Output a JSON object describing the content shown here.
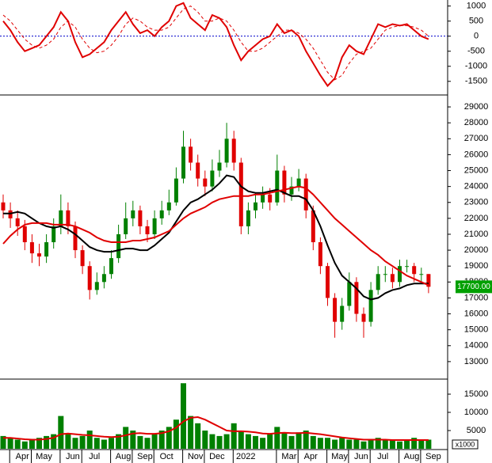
{
  "chart_data": [
    {
      "type": "line",
      "ylim": [
        -1900,
        1200
      ],
      "yticks": [
        1000,
        500,
        0,
        -500,
        -1000,
        -1500
      ],
      "zero_line_color": "#0000cc",
      "series": [
        {
          "color": "#e00000",
          "dashed": false,
          "values": [
            500,
            200,
            -200,
            -500,
            -400,
            -300,
            0,
            300,
            800,
            500,
            -200,
            -700,
            -600,
            -400,
            -200,
            200,
            500,
            800,
            400,
            100,
            200,
            0,
            300,
            500,
            1000,
            1100,
            600,
            400,
            200,
            700,
            600,
            300,
            -300,
            -800,
            -500,
            -300,
            -100,
            0,
            400,
            100,
            200,
            0,
            -500,
            -900,
            -1300,
            -1650,
            -1400,
            -700,
            -300,
            -500,
            -600,
            -100,
            400,
            300,
            400,
            350,
            400,
            200,
            0,
            -100
          ]
        },
        {
          "color": "#e00000",
          "dashed": true,
          "values": [
            700,
            500,
            200,
            -100,
            -300,
            -400,
            -300,
            -100,
            300,
            500,
            300,
            -100,
            -400,
            -550,
            -500,
            -300,
            0,
            400,
            600,
            500,
            300,
            200,
            200,
            300,
            600,
            900,
            1000,
            800,
            500,
            500,
            600,
            500,
            200,
            -200,
            -500,
            -500,
            -400,
            -200,
            0,
            200,
            200,
            100,
            -100,
            -400,
            -800,
            -1200,
            -1450,
            -1300,
            -900,
            -600,
            -500,
            -400,
            -100,
            200,
            300,
            350,
            350,
            300,
            200,
            0
          ]
        }
      ]
    },
    {
      "type": "candlestick",
      "ylim": [
        11950,
        29650
      ],
      "yticks": [
        29000,
        28000,
        27000,
        26000,
        25000,
        24000,
        23000,
        22000,
        21000,
        20000,
        19000,
        18000,
        17000,
        16000,
        15000,
        14000,
        13000
      ],
      "up_color": "#008000",
      "down_color": "#e00000",
      "open": [
        23000,
        22500,
        22000,
        21500,
        20500,
        19800,
        19600,
        20500,
        21500,
        22500,
        21500,
        20000,
        19000,
        17500,
        18000,
        18500,
        19500,
        21000,
        22000,
        22500,
        21500,
        21000,
        22000,
        22500,
        23000,
        24500,
        26500,
        25500,
        24500,
        24000,
        25000,
        25500,
        27000,
        25500,
        21500,
        22500,
        23000,
        23500,
        23000,
        25000,
        23500,
        24000,
        24500,
        22500,
        20500,
        19000,
        17000,
        15500,
        16500,
        18000,
        16000,
        15500,
        17500,
        18500,
        18500,
        18000,
        19000,
        19000,
        18500,
        18500
      ],
      "high": [
        23500,
        23000,
        22500,
        21900,
        21000,
        20400,
        21000,
        22000,
        23500,
        23000,
        21800,
        20300,
        19300,
        18600,
        19000,
        20000,
        21600,
        23000,
        23100,
        22800,
        21900,
        22500,
        23100,
        23800,
        25200,
        27500,
        27000,
        26000,
        25000,
        25700,
        26300,
        28000,
        27500,
        25800,
        23000,
        23600,
        24000,
        23900,
        26000,
        25300,
        24600,
        25100,
        24800,
        22800,
        20800,
        19200,
        17300,
        17000,
        18600,
        18300,
        16400,
        18000,
        19000,
        19000,
        18900,
        19400,
        19400,
        19200,
        18900,
        18500
      ],
      "low": [
        22000,
        21400,
        20900,
        20000,
        19200,
        19000,
        19200,
        20100,
        21000,
        21000,
        19500,
        18500,
        16900,
        17200,
        17600,
        18200,
        19200,
        20700,
        21500,
        21000,
        20500,
        20700,
        21600,
        22200,
        22800,
        24200,
        25000,
        24000,
        23400,
        23700,
        24600,
        25200,
        25000,
        21000,
        21000,
        22000,
        22600,
        22500,
        22800,
        23000,
        23100,
        23700,
        22000,
        20000,
        18500,
        16500,
        14500,
        15000,
        16200,
        15500,
        14500,
        15200,
        17200,
        18000,
        17600,
        17700,
        18600,
        18000,
        18000,
        17300
      ],
      "close": [
        22500,
        22000,
        21500,
        20500,
        19800,
        19600,
        20500,
        21500,
        22500,
        21500,
        20000,
        19000,
        17500,
        18000,
        18500,
        19500,
        21000,
        22000,
        22500,
        21500,
        21000,
        22000,
        22500,
        23000,
        24500,
        26500,
        25500,
        24500,
        24000,
        25000,
        25500,
        27000,
        25500,
        21500,
        22500,
        23000,
        23500,
        23000,
        25000,
        23500,
        24000,
        24500,
        22500,
        20500,
        19000,
        17000,
        15500,
        16500,
        18000,
        16000,
        15500,
        17500,
        18500,
        18500,
        18000,
        19000,
        19000,
        18500,
        18500,
        17700
      ],
      "overlays": [
        {
          "color": "#000000",
          "values": [
            22300,
            22300,
            22400,
            22300,
            22000,
            21700,
            21500,
            21400,
            21500,
            21300,
            21000,
            20600,
            20200,
            20000,
            19900,
            19900,
            20000,
            20100,
            20100,
            20000,
            20000,
            20300,
            20700,
            21100,
            21800,
            22500,
            23000,
            23200,
            23500,
            23800,
            24200,
            24700,
            24600,
            24000,
            23700,
            23600,
            23600,
            23700,
            23800,
            23600,
            23400,
            23400,
            23200,
            22500,
            21500,
            20300,
            19200,
            18400,
            18000,
            17600,
            17100,
            16900,
            17000,
            17300,
            17500,
            17600,
            17800,
            17900,
            17900,
            17900
          ]
        },
        {
          "color": "#e00000",
          "values": [
            20400,
            20900,
            21300,
            21600,
            21700,
            21700,
            21700,
            21600,
            21600,
            21600,
            21500,
            21300,
            21100,
            20800,
            20600,
            20500,
            20500,
            20500,
            20600,
            20600,
            20700,
            20800,
            21000,
            21200,
            21600,
            22000,
            22300,
            22500,
            22700,
            23000,
            23200,
            23300,
            23400,
            23400,
            23400,
            23500,
            23500,
            23600,
            23700,
            23800,
            23900,
            24000,
            23900,
            23500,
            23000,
            22500,
            22000,
            21600,
            21200,
            20800,
            20400,
            20000,
            19700,
            19300,
            19000,
            18700,
            18400,
            18200,
            18000,
            17800
          ]
        }
      ],
      "last_price": {
        "value": 17700,
        "label": "17700.00"
      },
      "last_price_color": "#00a000"
    },
    {
      "type": "bar",
      "ylim": [
        0,
        18700
      ],
      "yticks": [
        15000,
        10000,
        5000
      ],
      "unit_label": "x1000",
      "color": "#008000",
      "categories": [
        null,
        null,
        "Apr",
        null,
        null,
        "May",
        null,
        null,
        null,
        "Jun",
        null,
        null,
        "Jul",
        null,
        null,
        null,
        "Aug",
        null,
        null,
        "Sep",
        null,
        null,
        "Oct",
        null,
        null,
        null,
        "Nov",
        null,
        null,
        "Dec",
        null,
        null,
        null,
        "2022",
        null,
        null,
        null,
        null,
        null,
        "Mar",
        null,
        null,
        "Apr",
        null,
        null,
        null,
        "May",
        null,
        null,
        "Jun",
        null,
        null,
        "Jul",
        null,
        null,
        null,
        "Aug",
        null,
        null,
        "Sep"
      ],
      "values": [
        3500,
        3000,
        2500,
        2000,
        2500,
        3000,
        3500,
        4000,
        9000,
        4000,
        3000,
        3500,
        5000,
        3000,
        2500,
        3000,
        4000,
        6000,
        5000,
        3500,
        3000,
        4000,
        5000,
        6000,
        8000,
        18000,
        9000,
        7000,
        5000,
        4000,
        3500,
        4000,
        7000,
        5000,
        4000,
        3500,
        3000,
        4000,
        6000,
        4500,
        3500,
        4500,
        5000,
        3500,
        3000,
        3000,
        2500,
        3000,
        2500,
        2500,
        2000,
        2500,
        3000,
        2500,
        2500,
        2000,
        2500,
        3000,
        2500,
        2500
      ],
      "overlays": [
        {
          "color": "#e00000",
          "values": [
            3000,
            3000,
            2800,
            2600,
            2500,
            2500,
            2700,
            3000,
            4000,
            4200,
            4000,
            3800,
            3700,
            3500,
            3300,
            3200,
            3300,
            3700,
            4200,
            4300,
            4100,
            4100,
            4300,
            4800,
            5800,
            7500,
            8500,
            8700,
            8000,
            7000,
            6000,
            5000,
            4800,
            4800,
            4700,
            4500,
            4200,
            4100,
            4300,
            4400,
            4300,
            4300,
            4400,
            4200,
            4000,
            3700,
            3400,
            3100,
            2900,
            2700,
            2500,
            2500,
            2500,
            2500,
            2400,
            2400,
            2400,
            2400,
            2400,
            2400
          ]
        }
      ]
    }
  ]
}
